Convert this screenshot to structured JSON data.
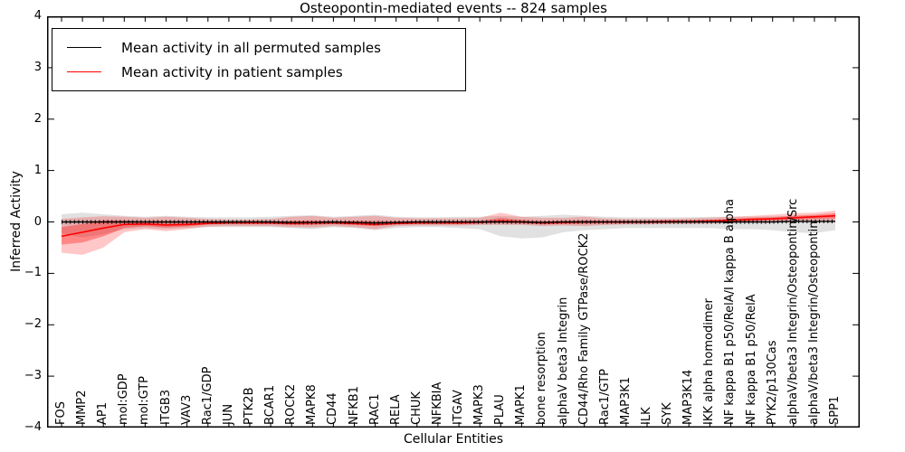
{
  "title": "Osteopontin-mediated events -- 824 samples",
  "colors": {
    "permuted_line": "#000000",
    "patient_line": "#ff0000",
    "permuted_band": "#aaaaaa",
    "patient_band": "#ff0000",
    "axis": "#000000",
    "background": "#ffffff"
  },
  "chart_data": {
    "type": "line",
    "title": "Osteopontin-mediated events -- 824 samples",
    "xlabel": "Cellular Entities",
    "ylabel": "Inferred Activity",
    "ylim": [
      -4,
      4
    ],
    "grid": false,
    "legend_position": "upper left",
    "yticks": {
      "values": [
        4,
        3,
        2,
        1,
        0,
        -1,
        -2,
        -3,
        -4
      ],
      "labels": [
        "4",
        "3",
        "2",
        "1",
        "0",
        "−1",
        "−2",
        "−3",
        "−4"
      ]
    },
    "categories": [
      "FOS",
      "MMP2",
      "AP1",
      "mol:GDP",
      "mol:GTP",
      "ITGB3",
      "VAV3",
      "Rac1/GDP",
      "JUN",
      "PTK2B",
      "BCAR1",
      "ROCK2",
      "MAPK8",
      "CD44",
      "NFKB1",
      "RAC1",
      "RELA",
      "CHUK",
      "NFKBIA",
      "ITGAV",
      "MAPK3",
      "PLAU",
      "MAPK1",
      "bone resorption",
      "alphaV beta3 Integrin",
      "CD44/Rho Family GTPase/ROCK2",
      "Rac1/GTP",
      "MAP3K1",
      "ILK",
      "SYK",
      "MAP3K14",
      "IKK alpha homodimer",
      "NF kappa B1 p50/RelA/I kappa B alpha",
      "NF kappa B1 p50/RelA",
      "PYK2/p130Cas",
      "alphaV/beta3 Integrin/Osteopontin/Src",
      "alphaV/beta3 Integrin/Osteopontin",
      "SPP1"
    ],
    "legend": {
      "entries": [
        {
          "label": "Mean activity in all permuted samples",
          "color": "#000000"
        },
        {
          "label": "Mean activity in patient samples",
          "color": "#ff0000"
        }
      ]
    },
    "series": [
      {
        "name": "Mean activity in all permuted samples",
        "color": "#000000",
        "values": [
          0.0,
          0.0,
          0.0,
          0.0,
          0.0,
          0.0,
          0.0,
          0.0,
          0.0,
          0.0,
          0.0,
          -0.01,
          -0.01,
          0.0,
          -0.01,
          -0.02,
          -0.01,
          0.0,
          0.0,
          0.0,
          0.0,
          0.0,
          0.0,
          -0.01,
          0.0,
          0.0,
          0.0,
          0.0,
          0.0,
          0.0,
          0.0,
          0.0,
          0.0,
          0.0,
          0.0,
          0.01,
          0.01,
          0.01
        ],
        "band_lo": [
          -0.22,
          -0.3,
          -0.24,
          -0.14,
          -0.12,
          -0.14,
          -0.12,
          -0.1,
          -0.1,
          -0.1,
          -0.1,
          -0.12,
          -0.14,
          -0.1,
          -0.12,
          -0.16,
          -0.12,
          -0.1,
          -0.1,
          -0.12,
          -0.14,
          -0.28,
          -0.32,
          -0.3,
          -0.2,
          -0.16,
          -0.14,
          -0.12,
          -0.12,
          -0.12,
          -0.12,
          -0.12,
          -0.14,
          -0.14,
          -0.16,
          -0.2,
          -0.22,
          -0.16
        ],
        "band_hi": [
          0.15,
          0.18,
          0.15,
          0.12,
          0.1,
          0.12,
          0.1,
          0.09,
          0.09,
          0.09,
          0.1,
          0.12,
          0.13,
          0.1,
          0.12,
          0.14,
          0.1,
          0.09,
          0.09,
          0.1,
          0.1,
          0.12,
          0.1,
          0.12,
          0.14,
          0.12,
          0.1,
          0.09,
          0.09,
          0.09,
          0.09,
          0.1,
          0.1,
          0.1,
          0.11,
          0.12,
          0.12,
          0.1
        ]
      },
      {
        "name": "Mean activity in patient samples",
        "color": "#ff0000",
        "values": [
          -0.28,
          -0.2,
          -0.12,
          -0.05,
          -0.04,
          -0.06,
          -0.05,
          -0.03,
          -0.02,
          -0.02,
          -0.02,
          -0.03,
          -0.02,
          -0.02,
          -0.03,
          -0.05,
          -0.03,
          -0.02,
          -0.02,
          -0.02,
          -0.01,
          0.02,
          0.0,
          -0.02,
          -0.01,
          0.0,
          0.0,
          0.0,
          0.0,
          0.01,
          0.01,
          0.02,
          0.03,
          0.05,
          0.06,
          0.08,
          0.1,
          0.12
        ],
        "band_lo": [
          -0.6,
          -0.64,
          -0.5,
          -0.2,
          -0.14,
          -0.18,
          -0.14,
          -0.09,
          -0.08,
          -0.08,
          -0.08,
          -0.1,
          -0.11,
          -0.08,
          -0.1,
          -0.14,
          -0.08,
          -0.07,
          -0.07,
          -0.07,
          -0.06,
          -0.06,
          -0.06,
          -0.08,
          -0.07,
          -0.08,
          -0.06,
          -0.05,
          -0.05,
          -0.04,
          -0.04,
          -0.03,
          -0.02,
          0.0,
          0.0,
          0.01,
          0.02,
          0.02
        ],
        "band_hi": [
          0.06,
          0.09,
          0.11,
          0.1,
          0.08,
          0.1,
          0.08,
          0.06,
          0.05,
          0.05,
          0.06,
          0.1,
          0.12,
          0.08,
          0.1,
          0.12,
          0.08,
          0.07,
          0.07,
          0.07,
          0.08,
          0.18,
          0.1,
          0.08,
          0.08,
          0.1,
          0.07,
          0.06,
          0.06,
          0.06,
          0.07,
          0.08,
          0.1,
          0.12,
          0.14,
          0.17,
          0.18,
          0.22
        ],
        "band_inner_lo": [
          -0.44,
          -0.4,
          -0.28,
          -0.12,
          -0.08,
          -0.11,
          -0.09,
          -0.05,
          -0.04,
          -0.04,
          -0.04,
          -0.06,
          -0.06,
          -0.04,
          -0.06,
          -0.08,
          -0.05,
          -0.04,
          -0.04,
          -0.04,
          -0.03,
          -0.02,
          -0.03,
          -0.05,
          -0.04,
          -0.04,
          -0.03,
          -0.03,
          -0.03,
          -0.02,
          -0.02,
          -0.01,
          0.0,
          0.02,
          0.03,
          0.04,
          0.06,
          0.07
        ],
        "band_inner_hi": [
          -0.1,
          -0.04,
          0.03,
          0.03,
          0.01,
          0.02,
          0.01,
          0.0,
          0.0,
          0.0,
          0.01,
          0.02,
          0.03,
          0.01,
          0.02,
          0.02,
          0.01,
          0.01,
          0.01,
          0.01,
          0.02,
          0.08,
          0.04,
          0.02,
          0.02,
          0.03,
          0.02,
          0.02,
          0.02,
          0.03,
          0.03,
          0.04,
          0.06,
          0.08,
          0.09,
          0.12,
          0.14,
          0.17
        ]
      }
    ]
  }
}
